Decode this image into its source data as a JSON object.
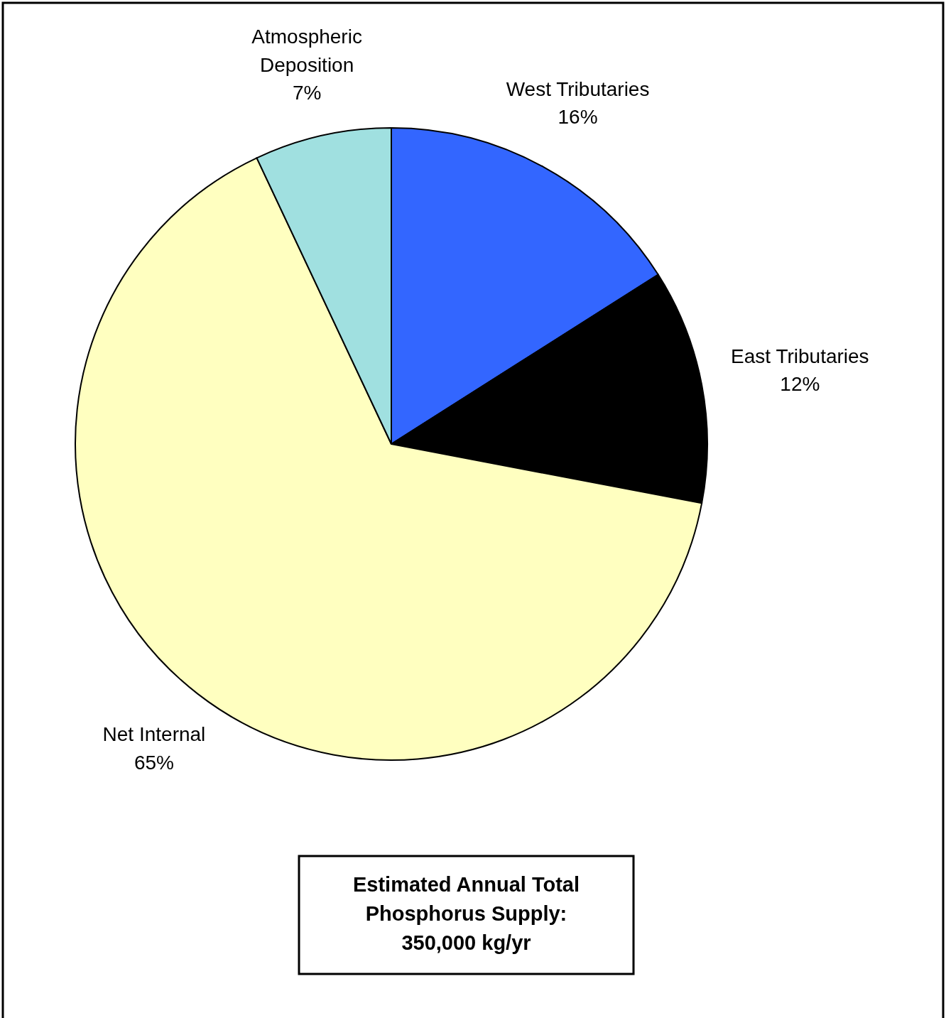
{
  "chart_data": {
    "type": "pie",
    "categories": [
      "West Tributaries",
      "East Tributaries",
      "Net Internal",
      "Atmospheric Deposition"
    ],
    "values": [
      16,
      12,
      65,
      7
    ],
    "value_labels": [
      "16%",
      "12%",
      "65%",
      "7%"
    ],
    "colors": [
      "#3366ff",
      "#000000",
      "#ffffc0",
      "#a0e0e0"
    ],
    "annotations": [
      "Estimated Annual Total Phosphorus Supply: 350,000 kg/yr"
    ]
  }
}
